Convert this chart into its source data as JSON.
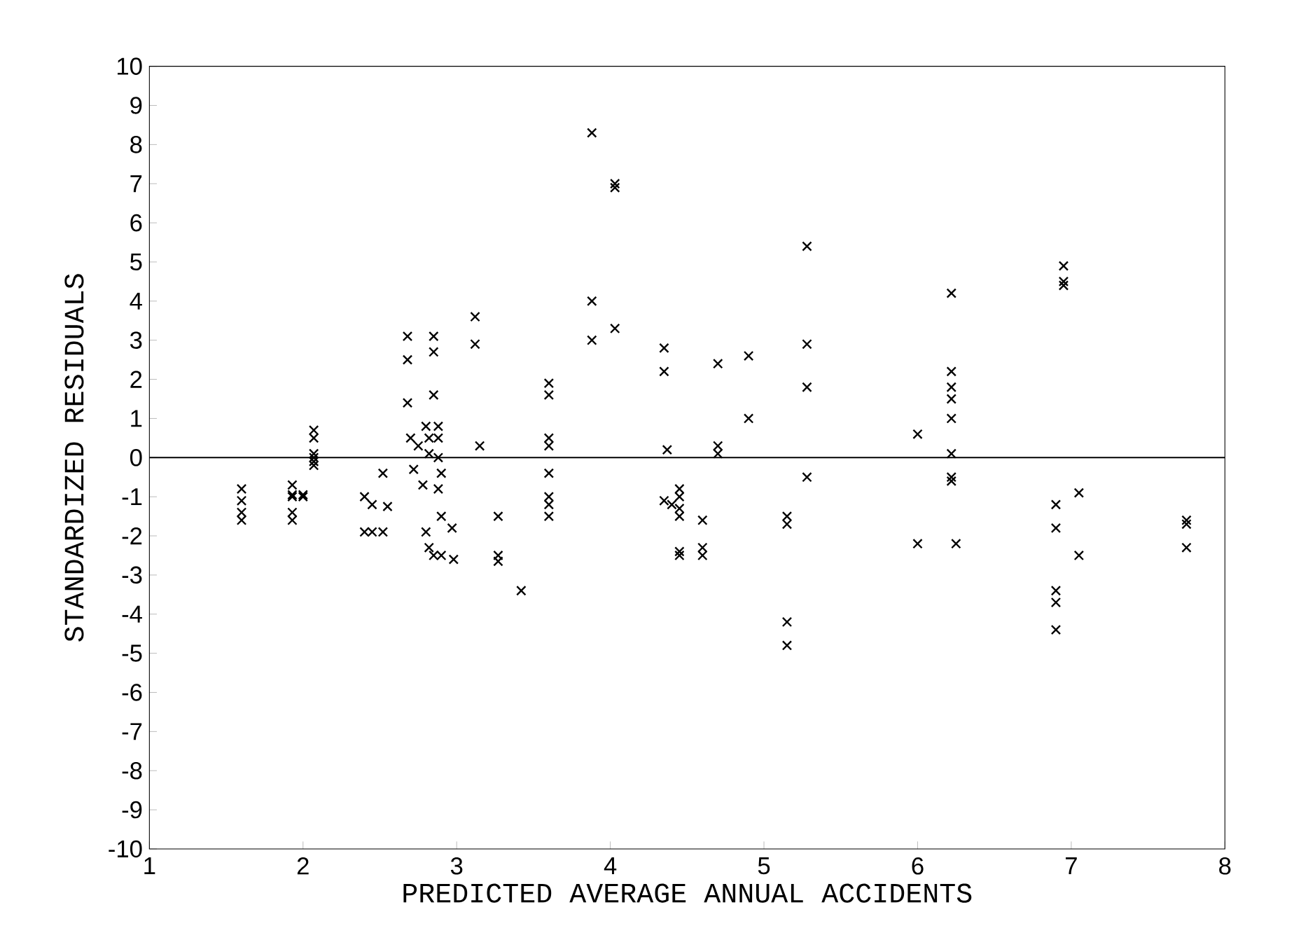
{
  "chart_data": {
    "type": "scatter",
    "xlabel": "PREDICTED AVERAGE ANNUAL ACCIDENTS",
    "ylabel": "STANDARDIZED RESIDUALS",
    "xlim": [
      1,
      8
    ],
    "ylim": [
      -10,
      10
    ],
    "xticks": [
      1,
      2,
      3,
      4,
      5,
      6,
      7,
      8
    ],
    "yticks": [
      -10,
      -9,
      -8,
      -7,
      -6,
      -5,
      -4,
      -3,
      -2,
      -1,
      0,
      1,
      2,
      3,
      4,
      5,
      6,
      7,
      8,
      9,
      10
    ],
    "grid": false,
    "marker": "cross",
    "ref_lines": [
      {
        "axis": "y",
        "value": 0,
        "color": "#000000"
      }
    ],
    "series": [
      {
        "color": "#000000",
        "x": [
          1.6,
          1.6,
          1.6,
          1.6,
          1.93,
          1.93,
          1.93,
          1.93,
          1.93,
          2.0,
          2.0,
          2.07,
          2.07,
          2.07,
          2.07,
          2.07,
          2.07,
          2.4,
          2.4,
          2.45,
          2.45,
          2.52,
          2.52,
          2.55,
          2.68,
          2.68,
          2.68,
          2.7,
          2.75,
          2.72,
          2.78,
          2.8,
          2.82,
          2.82,
          2.8,
          2.82,
          2.85,
          2.85,
          2.85,
          2.85,
          2.88,
          2.88,
          2.88,
          2.9,
          2.88,
          2.9,
          2.9,
          2.97,
          2.98,
          3.12,
          3.12,
          3.15,
          3.27,
          3.27,
          3.27,
          3.42,
          3.6,
          3.6,
          3.6,
          3.6,
          3.6,
          3.6,
          3.6,
          3.6,
          3.88,
          3.88,
          3.88,
          4.03,
          4.03,
          4.03,
          4.35,
          4.35,
          4.37,
          4.35,
          4.4,
          4.45,
          4.45,
          4.45,
          4.45,
          4.45,
          4.45,
          4.6,
          4.6,
          4.6,
          4.7,
          4.7,
          4.7,
          4.9,
          4.9,
          5.15,
          5.15,
          5.15,
          5.15,
          5.28,
          5.28,
          5.28,
          5.28,
          6.0,
          6.0,
          6.22,
          6.22,
          6.22,
          6.22,
          6.22,
          6.22,
          6.22,
          6.22,
          6.25,
          6.9,
          6.9,
          6.9,
          6.9,
          6.9,
          6.95,
          6.95,
          6.95,
          7.05,
          7.05,
          7.75,
          7.75,
          7.75
        ],
        "values": [
          -0.8,
          -1.1,
          -1.4,
          -1.6,
          -0.7,
          -0.95,
          -1.0,
          -1.4,
          -1.6,
          -0.95,
          -1.0,
          0.7,
          0.5,
          0.1,
          0,
          -0.1,
          -0.2,
          -1.0,
          -1.9,
          -1.2,
          -1.9,
          -0.4,
          -1.9,
          -1.25,
          3.1,
          2.5,
          1.4,
          0.5,
          0.3,
          -0.3,
          -0.7,
          0.8,
          0.5,
          0.1,
          -1.9,
          -2.3,
          -2.5,
          3.1,
          2.7,
          1.6,
          0.8,
          0.5,
          0,
          -0.4,
          -0.8,
          -1.5,
          -2.5,
          -1.8,
          -2.6,
          3.6,
          2.9,
          0.3,
          -1.5,
          -2.5,
          -2.65,
          -3.4,
          1.9,
          1.6,
          0.5,
          0.3,
          -0.4,
          -1.0,
          -1.2,
          -1.5,
          8.3,
          4.0,
          3.0,
          7.0,
          6.9,
          3.3,
          2.8,
          2.2,
          0.2,
          -1.1,
          -1.2,
          -0.8,
          -1.0,
          -1.3,
          -1.5,
          -2.4,
          -2.5,
          -1.6,
          -2.3,
          -2.5,
          2.4,
          0.3,
          0.1,
          2.6,
          1.0,
          -1.5,
          -1.7,
          -4.2,
          -4.8,
          5.4,
          2.9,
          1.8,
          -0.5,
          0.6,
          -2.2,
          4.2,
          2.2,
          1.8,
          1.5,
          1.0,
          0.1,
          -0.6,
          -0.5,
          -2.2,
          -1.2,
          -1.8,
          -3.4,
          -3.7,
          -4.4,
          4.9,
          4.5,
          4.4,
          -0.9,
          -2.5,
          -1.6,
          -1.7,
          -2.3
        ]
      }
    ]
  }
}
